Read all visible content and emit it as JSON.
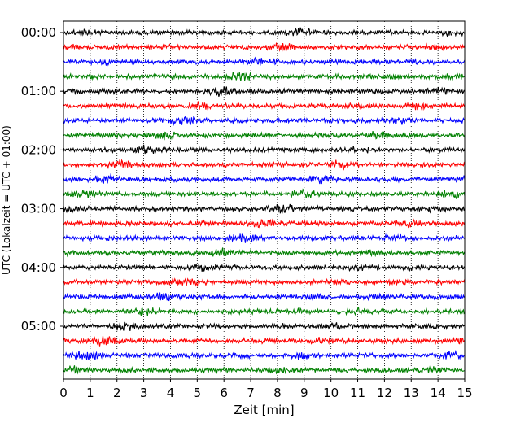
{
  "chart_data": {
    "type": "line",
    "title": "",
    "xlabel": "Zeit  [min]",
    "ylabel": "UTC (Lokalzeit = UTC + 01:00)",
    "xlim": [
      0,
      15
    ],
    "x_ticks": [
      "0",
      "1",
      "2",
      "3",
      "4",
      "5",
      "6",
      "7",
      "8",
      "9",
      "10",
      "11",
      "12",
      "13",
      "14",
      "15"
    ],
    "y_tick_labels": [
      "00:00",
      "01:00",
      "02:00",
      "03:00",
      "04:00",
      "05:00"
    ],
    "trace_interval_min": 15,
    "trace_start_times": [
      "00:00",
      "00:15",
      "00:30",
      "00:45",
      "01:00",
      "01:15",
      "01:30",
      "01:45",
      "02:00",
      "02:15",
      "02:30",
      "02:45",
      "03:00",
      "03:15",
      "03:30",
      "03:45",
      "04:00",
      "04:15",
      "04:30",
      "04:45",
      "05:00",
      "05:15",
      "05:30",
      "05:45"
    ],
    "trace_colors": [
      "#000000",
      "#ff0000",
      "#0000ff",
      "#008000"
    ],
    "grid": "vertical dotted at each minute"
  }
}
